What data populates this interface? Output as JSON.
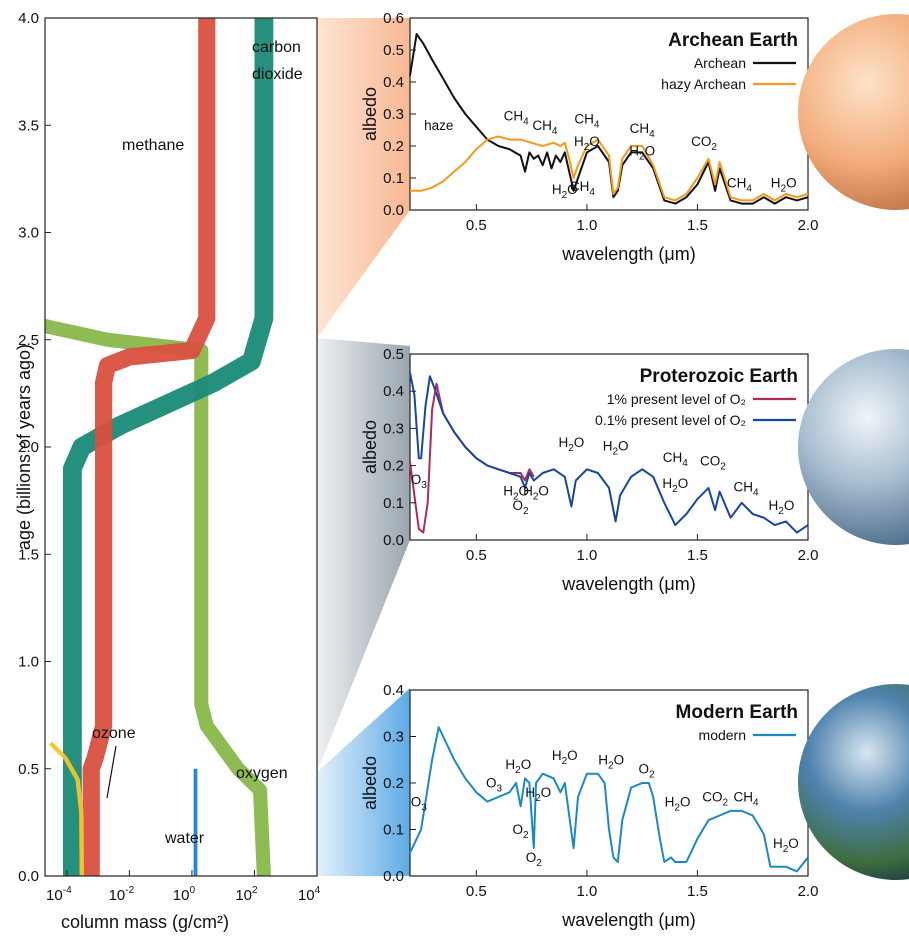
{
  "chart_data": [
    {
      "type": "area",
      "xlabel": "column mass (g/cm²)",
      "ylabel": "age (billions of years ago)",
      "x_scale": "log",
      "xlim": [
        2e-05,
        10000
      ],
      "ylim": [
        0,
        4.0
      ],
      "xticks": [
        {
          "value": 0.0001,
          "base": "10",
          "exp": "-4"
        },
        {
          "value": 0.01,
          "base": "10",
          "exp": "-2"
        },
        {
          "value": 1,
          "base": "10",
          "exp": "0"
        },
        {
          "value": 100,
          "base": "10",
          "exp": "2"
        },
        {
          "value": 10000,
          "base": "10",
          "exp": "4"
        }
      ],
      "yticks": [
        "0.0",
        "0.5",
        "1.0",
        "1.5",
        "2.0",
        "2.5",
        "3.0",
        "3.5",
        "4.0"
      ],
      "series": [
        {
          "name": "oxygen",
          "color": "#88b84a",
          "center": [
            [
              4.0,
              1.5e-06
            ],
            [
              3.0,
              1.5e-06
            ],
            [
              2.6,
              1.5e-06
            ],
            [
              2.5,
              0.002
            ],
            [
              2.45,
              2.0
            ],
            [
              2.4,
              2.0
            ],
            [
              2.35,
              2.0
            ],
            [
              2.0,
              2.0
            ],
            [
              1.8,
              2.0
            ],
            [
              0.8,
              2.0
            ],
            [
              0.7,
              3.0
            ],
            [
              0.5,
              30
            ],
            [
              0.4,
              150
            ],
            [
              0.0,
              200
            ]
          ],
          "width": 0.45
        },
        {
          "name": "carbon dioxide",
          "color": "#1a8a78",
          "center": [
            [
              4.0,
              200
            ],
            [
              3.5,
              200
            ],
            [
              3.0,
              200
            ],
            [
              2.6,
              200
            ],
            [
              2.4,
              80
            ],
            [
              2.3,
              5
            ],
            [
              2.1,
              0.005
            ],
            [
              2.0,
              0.0003
            ],
            [
              1.9,
              0.00015
            ],
            [
              1.8,
              0.00015
            ],
            [
              0.0,
              0.00015
            ]
          ],
          "width": 0.6
        },
        {
          "name": "methane",
          "color": "#d9503f",
          "center": [
            [
              4.0,
              3
            ],
            [
              3.0,
              3
            ],
            [
              2.6,
              3
            ],
            [
              2.45,
              1
            ],
            [
              2.42,
              0.01
            ],
            [
              2.38,
              0.002
            ],
            [
              2.3,
              0.0015
            ],
            [
              0.7,
              0.0015
            ],
            [
              0.55,
              0.0008
            ],
            [
              0.5,
              0.0006
            ],
            [
              0.0,
              0.0006
            ]
          ],
          "width": 0.55
        },
        {
          "name": "water",
          "color": "#1e7fd4",
          "center": [
            [
              0.5,
              1.3
            ],
            [
              0.0,
              1.3
            ]
          ],
          "width": 0.12
        },
        {
          "name": "ozone",
          "color": "#f4c628",
          "center": [
            [
              0.62,
              3e-05
            ],
            [
              0.55,
              9e-05
            ],
            [
              0.45,
              0.00022
            ],
            [
              0.3,
              0.00029
            ],
            [
              0.0,
              0.0003
            ]
          ],
          "width": 0.14
        }
      ],
      "labels": {
        "carbon_dioxide_1": "carbon",
        "carbon_dioxide_2": "dioxide",
        "methane": "methane",
        "ozone": "ozone",
        "oxygen": "oxygen",
        "water": "water"
      }
    },
    {
      "type": "line",
      "title": "Archean Earth",
      "xlabel": "wavelength (μm)",
      "ylabel": "albedo",
      "xlim": [
        0.2,
        2.0
      ],
      "ylim": [
        0.0,
        0.6
      ],
      "xticks": [
        "0.5",
        "1.0",
        "1.5",
        "2.0"
      ],
      "yticks": [
        "0.0",
        "0.1",
        "0.2",
        "0.3",
        "0.4",
        "0.5",
        "0.6"
      ],
      "legend_position": "top-right",
      "series": [
        {
          "name": "Archean",
          "color": "#111111",
          "x": [
            0.2,
            0.23,
            0.26,
            0.3,
            0.35,
            0.4,
            0.45,
            0.5,
            0.55,
            0.6,
            0.65,
            0.7,
            0.72,
            0.74,
            0.76,
            0.78,
            0.8,
            0.82,
            0.84,
            0.86,
            0.88,
            0.9,
            0.92,
            0.94,
            0.96,
            1.0,
            1.05,
            1.1,
            1.12,
            1.14,
            1.16,
            1.2,
            1.25,
            1.3,
            1.35,
            1.4,
            1.45,
            1.5,
            1.55,
            1.58,
            1.6,
            1.65,
            1.7,
            1.75,
            1.8,
            1.85,
            1.9,
            1.95,
            2.0
          ],
          "y": [
            0.42,
            0.55,
            0.52,
            0.47,
            0.41,
            0.35,
            0.3,
            0.26,
            0.22,
            0.2,
            0.19,
            0.17,
            0.12,
            0.18,
            0.16,
            0.17,
            0.14,
            0.18,
            0.13,
            0.17,
            0.15,
            0.18,
            0.12,
            0.06,
            0.1,
            0.18,
            0.2,
            0.15,
            0.04,
            0.06,
            0.14,
            0.18,
            0.18,
            0.13,
            0.03,
            0.02,
            0.04,
            0.08,
            0.15,
            0.06,
            0.13,
            0.03,
            0.02,
            0.02,
            0.04,
            0.02,
            0.04,
            0.03,
            0.04
          ]
        },
        {
          "name": "hazy Archean",
          "color": "#f29a1b",
          "x": [
            0.2,
            0.25,
            0.3,
            0.35,
            0.4,
            0.45,
            0.5,
            0.55,
            0.6,
            0.65,
            0.7,
            0.75,
            0.8,
            0.85,
            0.88,
            0.9,
            0.92,
            0.94,
            0.96,
            1.0,
            1.05,
            1.1,
            1.12,
            1.14,
            1.16,
            1.2,
            1.25,
            1.3,
            1.35,
            1.4,
            1.45,
            1.5,
            1.55,
            1.58,
            1.6,
            1.65,
            1.7,
            1.75,
            1.8,
            1.85,
            1.9,
            1.95,
            2.0
          ],
          "y": [
            0.06,
            0.06,
            0.07,
            0.09,
            0.12,
            0.15,
            0.19,
            0.22,
            0.23,
            0.22,
            0.22,
            0.21,
            0.2,
            0.21,
            0.2,
            0.21,
            0.16,
            0.1,
            0.14,
            0.2,
            0.22,
            0.17,
            0.05,
            0.07,
            0.16,
            0.2,
            0.2,
            0.14,
            0.04,
            0.03,
            0.05,
            0.1,
            0.16,
            0.08,
            0.15,
            0.04,
            0.03,
            0.03,
            0.05,
            0.03,
            0.05,
            0.04,
            0.05
          ]
        }
      ],
      "annotations": [
        {
          "text": "haze",
          "x": 0.33,
          "y": 0.25
        },
        {
          "text": "CH",
          "sub": "4",
          "x": 0.68,
          "y": 0.28
        },
        {
          "text": "CH",
          "sub": "4",
          "x": 0.81,
          "y": 0.25
        },
        {
          "text": "CH",
          "sub": "4",
          "x": 1.0,
          "y": 0.27
        },
        {
          "text": "H",
          "sub": "2",
          "tail": "O",
          "x": 1.0,
          "y": 0.2
        },
        {
          "text": "CH",
          "sub": "4",
          "x": 1.25,
          "y": 0.24
        },
        {
          "text": "H",
          "sub": "2",
          "tail": "O",
          "x": 1.25,
          "y": 0.17
        },
        {
          "text": "CO",
          "sub": "2",
          "x": 1.53,
          "y": 0.2
        },
        {
          "text": "H",
          "sub": "2",
          "tail": "O",
          "x": 0.9,
          "y": 0.05
        },
        {
          "text": "CH",
          "sub": "4",
          "x": 0.98,
          "y": 0.06
        },
        {
          "text": "CH",
          "sub": "4",
          "x": 1.69,
          "y": 0.07
        },
        {
          "text": "H",
          "sub": "2",
          "tail": "O",
          "x": 1.89,
          "y": 0.07
        }
      ]
    },
    {
      "type": "line",
      "title": "Proterozoic Earth",
      "xlabel": "wavelength (μm)",
      "ylabel": "albedo",
      "xlim": [
        0.2,
        2.0
      ],
      "ylim": [
        0.0,
        0.5
      ],
      "xticks": [
        "0.5",
        "1.0",
        "1.5",
        "2.0"
      ],
      "yticks": [
        "0.0",
        "0.1",
        "0.2",
        "0.3",
        "0.4",
        "0.5"
      ],
      "legend_position": "top-right",
      "series": [
        {
          "name": "1% present level of O₂",
          "color": "#b0285f",
          "x": [
            0.2,
            0.22,
            0.24,
            0.26,
            0.28,
            0.3,
            0.32,
            0.35,
            0.4,
            0.45,
            0.5,
            0.55,
            0.6,
            0.65,
            0.7,
            0.72,
            0.74,
            0.76
          ],
          "y": [
            0.21,
            0.12,
            0.03,
            0.02,
            0.1,
            0.35,
            0.42,
            0.34,
            0.29,
            0.25,
            0.22,
            0.2,
            0.19,
            0.18,
            0.18,
            0.16,
            0.19,
            0.17
          ]
        },
        {
          "name": "0.1% present level of O₂",
          "color": "#17479e",
          "x": [
            0.2,
            0.22,
            0.24,
            0.25,
            0.27,
            0.29,
            0.31,
            0.35,
            0.4,
            0.45,
            0.5,
            0.55,
            0.6,
            0.65,
            0.7,
            0.72,
            0.74,
            0.76,
            0.8,
            0.85,
            0.9,
            0.93,
            0.95,
            1.0,
            1.05,
            1.1,
            1.13,
            1.15,
            1.2,
            1.25,
            1.3,
            1.35,
            1.4,
            1.45,
            1.5,
            1.55,
            1.58,
            1.6,
            1.65,
            1.7,
            1.75,
            1.8,
            1.85,
            1.9,
            1.95,
            2.0
          ],
          "y": [
            0.45,
            0.39,
            0.22,
            0.22,
            0.36,
            0.44,
            0.41,
            0.34,
            0.29,
            0.25,
            0.22,
            0.2,
            0.19,
            0.18,
            0.17,
            0.14,
            0.18,
            0.16,
            0.18,
            0.19,
            0.17,
            0.09,
            0.16,
            0.19,
            0.18,
            0.14,
            0.05,
            0.12,
            0.17,
            0.19,
            0.17,
            0.1,
            0.04,
            0.07,
            0.11,
            0.14,
            0.08,
            0.13,
            0.06,
            0.1,
            0.07,
            0.06,
            0.04,
            0.05,
            0.02,
            0.04
          ]
        }
      ],
      "annotations": [
        {
          "text": "O",
          "sub": "3",
          "x": 0.24,
          "y": 0.15
        },
        {
          "text": "H",
          "sub": "2",
          "tail": "O",
          "x": 0.68,
          "y": 0.12
        },
        {
          "text": "O",
          "sub": "2",
          "x": 0.7,
          "y": 0.08
        },
        {
          "text": "H",
          "sub": "2",
          "tail": "O",
          "x": 0.77,
          "y": 0.12
        },
        {
          "text": "H",
          "sub": "2",
          "tail": "O",
          "x": 0.93,
          "y": 0.25
        },
        {
          "text": "H",
          "sub": "2",
          "tail": "O",
          "x": 1.13,
          "y": 0.24
        },
        {
          "text": "CH",
          "sub": "4",
          "x": 1.4,
          "y": 0.21
        },
        {
          "text": "H",
          "sub": "2",
          "tail": "O",
          "x": 1.4,
          "y": 0.14
        },
        {
          "text": "CO",
          "sub": "2",
          "x": 1.57,
          "y": 0.2
        },
        {
          "text": "CH",
          "sub": "4",
          "x": 1.72,
          "y": 0.13
        },
        {
          "text": "H",
          "sub": "2",
          "tail": "O",
          "x": 1.88,
          "y": 0.08
        }
      ]
    },
    {
      "type": "line",
      "title": "Modern Earth",
      "xlabel": "wavelength (μm)",
      "ylabel": "albedo",
      "xlim": [
        0.2,
        2.0
      ],
      "ylim": [
        0.0,
        0.4
      ],
      "xticks": [
        "0.5",
        "1.0",
        "1.5",
        "2.0"
      ],
      "yticks": [
        "0.0",
        "0.1",
        "0.2",
        "0.3",
        "0.4"
      ],
      "legend_position": "top-right",
      "series": [
        {
          "name": "modern",
          "color": "#1a8ac6",
          "x": [
            0.2,
            0.25,
            0.3,
            0.33,
            0.35,
            0.4,
            0.45,
            0.5,
            0.55,
            0.6,
            0.65,
            0.68,
            0.7,
            0.72,
            0.74,
            0.76,
            0.77,
            0.8,
            0.85,
            0.88,
            0.9,
            0.92,
            0.94,
            0.96,
            1.0,
            1.05,
            1.08,
            1.1,
            1.12,
            1.14,
            1.16,
            1.2,
            1.25,
            1.28,
            1.3,
            1.33,
            1.35,
            1.38,
            1.4,
            1.45,
            1.5,
            1.55,
            1.6,
            1.65,
            1.7,
            1.75,
            1.8,
            1.83,
            1.85,
            1.9,
            1.95,
            2.0
          ],
          "y": [
            0.05,
            0.1,
            0.25,
            0.32,
            0.3,
            0.25,
            0.21,
            0.18,
            0.16,
            0.17,
            0.18,
            0.2,
            0.15,
            0.21,
            0.2,
            0.06,
            0.2,
            0.22,
            0.21,
            0.18,
            0.2,
            0.13,
            0.06,
            0.17,
            0.22,
            0.22,
            0.2,
            0.1,
            0.04,
            0.03,
            0.12,
            0.19,
            0.2,
            0.2,
            0.17,
            0.08,
            0.03,
            0.04,
            0.03,
            0.03,
            0.08,
            0.12,
            0.13,
            0.14,
            0.14,
            0.13,
            0.09,
            0.02,
            0.02,
            0.02,
            0.01,
            0.04
          ]
        }
      ],
      "annotations": [
        {
          "text": "O",
          "sub": "3",
          "x": 0.24,
          "y": 0.15
        },
        {
          "text": "O",
          "sub": "3",
          "x": 0.58,
          "y": 0.19
        },
        {
          "text": "H",
          "sub": "2",
          "tail": "O",
          "x": 0.69,
          "y": 0.23
        },
        {
          "text": "H",
          "sub": "2",
          "tail": "O",
          "x": 0.78,
          "y": 0.17
        },
        {
          "text": "O",
          "sub": "2",
          "x": 0.7,
          "y": 0.09
        },
        {
          "text": "O",
          "sub": "2",
          "x": 0.76,
          "y": 0.03
        },
        {
          "text": "H",
          "sub": "2",
          "tail": "O",
          "x": 0.9,
          "y": 0.25
        },
        {
          "text": "H",
          "sub": "2",
          "tail": "O",
          "x": 1.11,
          "y": 0.24
        },
        {
          "text": "O",
          "sub": "2",
          "x": 1.27,
          "y": 0.22
        },
        {
          "text": "H",
          "sub": "2",
          "tail": "O",
          "x": 1.41,
          "y": 0.15
        },
        {
          "text": "CO",
          "sub": "2",
          "x": 1.58,
          "y": 0.16
        },
        {
          "text": "CH",
          "sub": "4",
          "x": 1.72,
          "y": 0.16
        },
        {
          "text": "H",
          "sub": "2",
          "tail": "O",
          "x": 1.9,
          "y": 0.06
        }
      ]
    }
  ],
  "colors": {
    "archean_planet": "#f0a77a",
    "proterozoic_planet": "#9fb8cc",
    "modern_planet": "#3f6f9a",
    "archean_wedge": "#fbc9a8",
    "proterozoic_wedge": "#a8b2bb",
    "modern_wedge": "#7ab9ea"
  }
}
